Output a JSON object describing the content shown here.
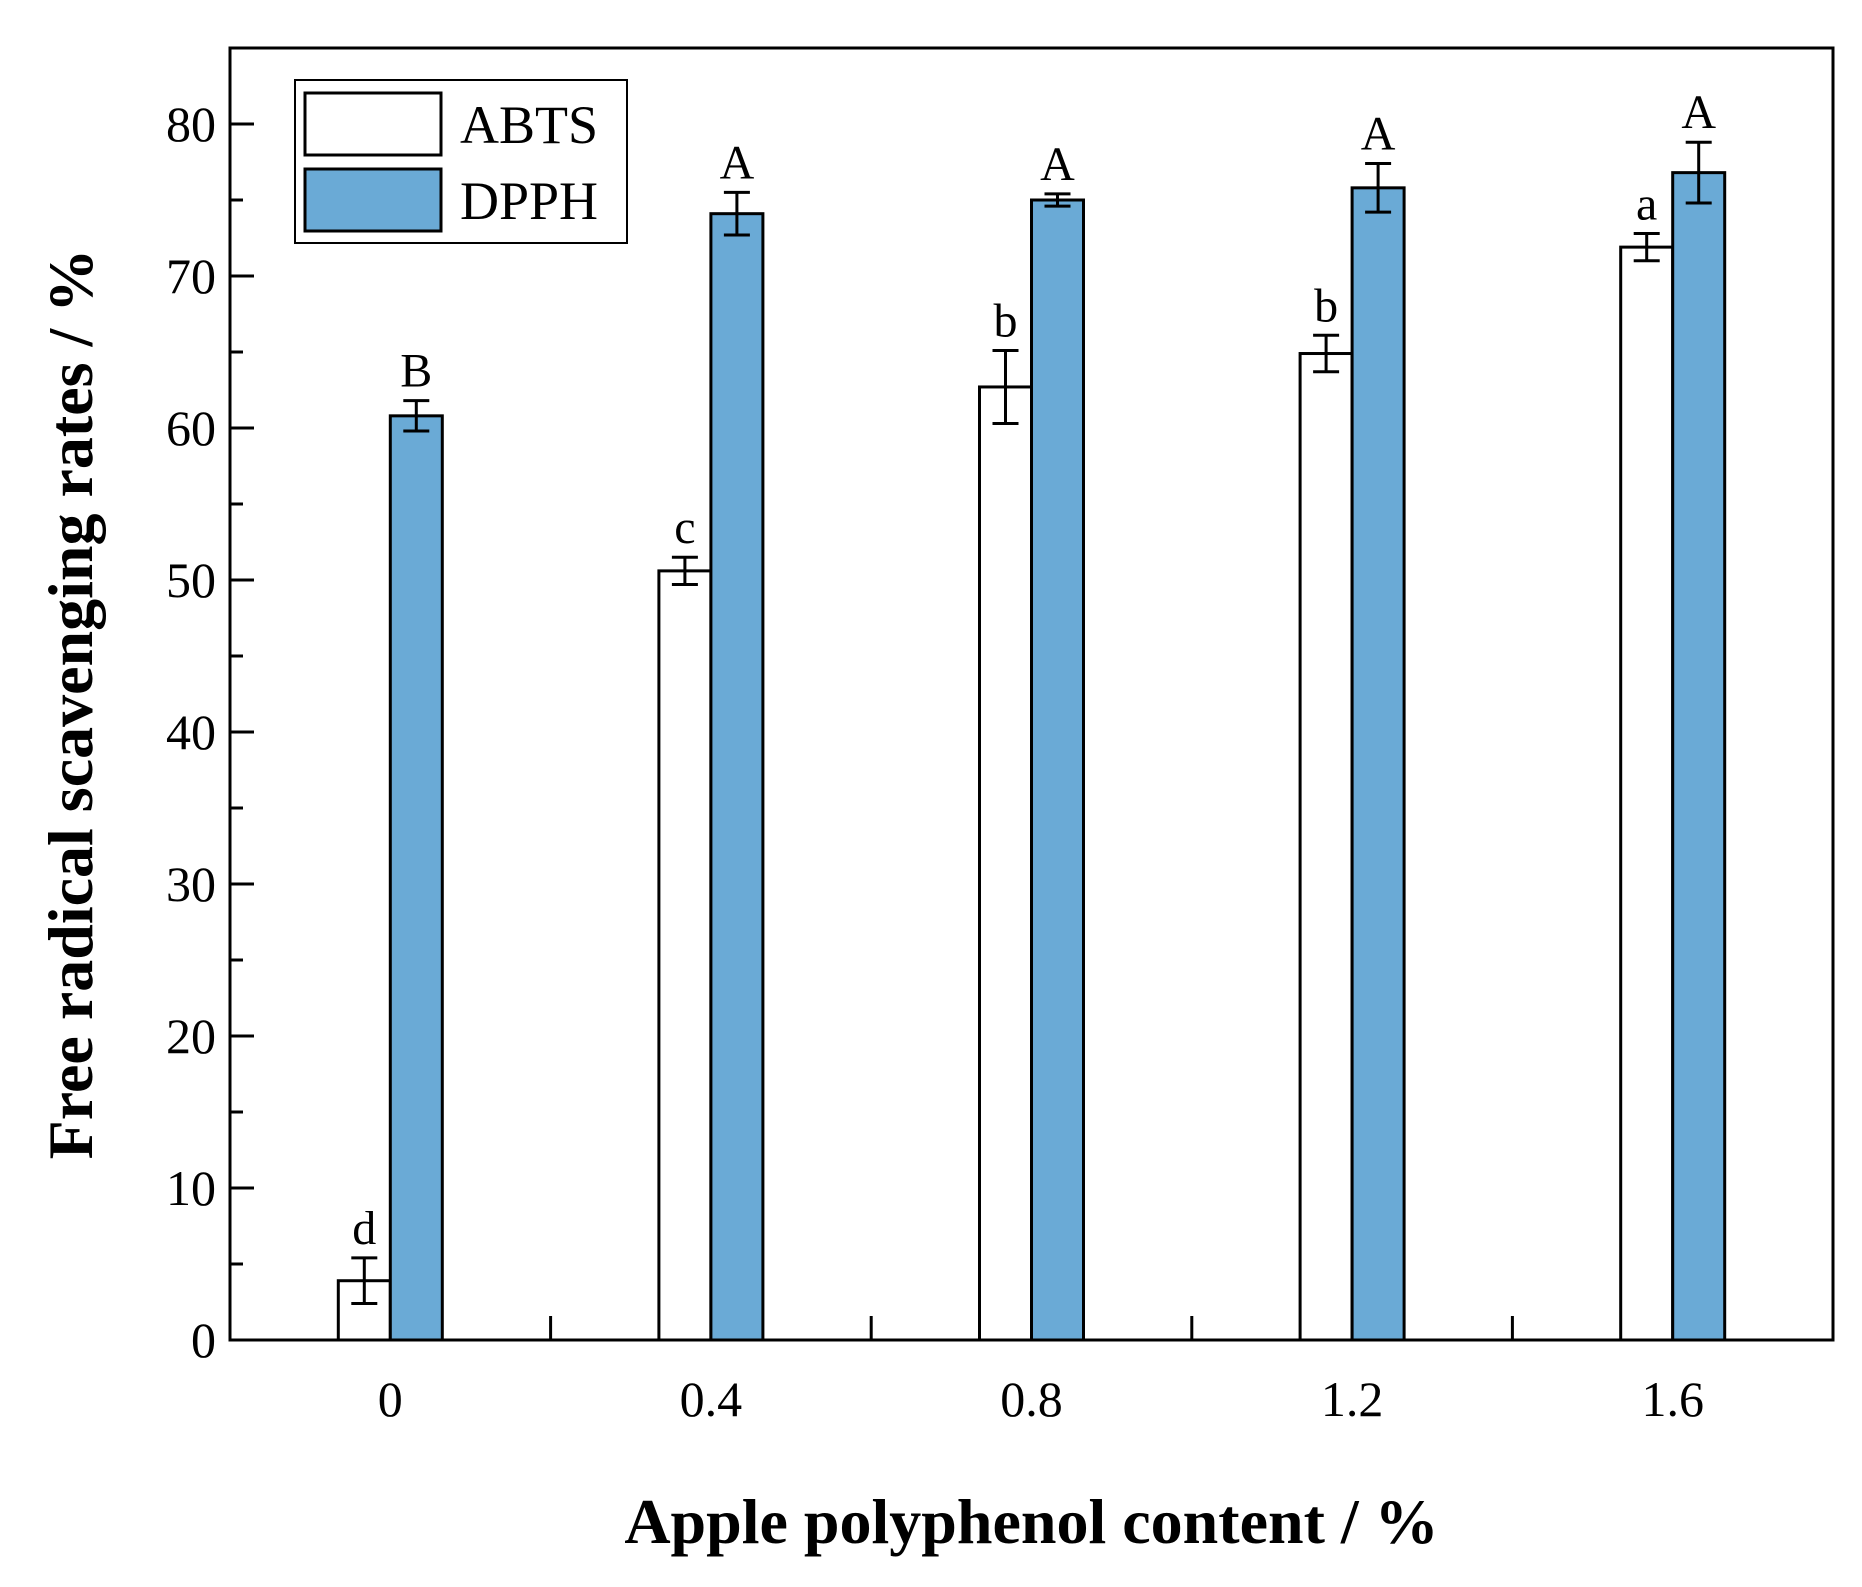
{
  "chart_data": {
    "type": "bar",
    "xlabel": "Apple polyphenol content / %",
    "ylabel": "Free radical scavenging rates / %",
    "categories": [
      "0",
      "0.4",
      "0.8",
      "1.2",
      "1.6"
    ],
    "ylim": [
      0,
      85
    ],
    "yticks": [
      0,
      10,
      20,
      30,
      40,
      50,
      60,
      70,
      80
    ],
    "grid": false,
    "legend_position": "top-left",
    "series": [
      {
        "name": "ABTS",
        "color": "#ffffff",
        "values": [
          3.9,
          50.6,
          62.7,
          64.9,
          71.9
        ],
        "errors": [
          1.5,
          0.9,
          2.4,
          1.2,
          0.9
        ],
        "labels": [
          "d",
          "c",
          "b",
          "b",
          "a"
        ]
      },
      {
        "name": "DPPH",
        "color": "#6aaad6",
        "values": [
          60.8,
          74.1,
          75.0,
          75.8,
          76.8
        ],
        "errors": [
          1.0,
          1.4,
          0.4,
          1.6,
          2.0
        ],
        "labels": [
          "B",
          "A",
          "A",
          "A",
          "A"
        ]
      }
    ]
  }
}
